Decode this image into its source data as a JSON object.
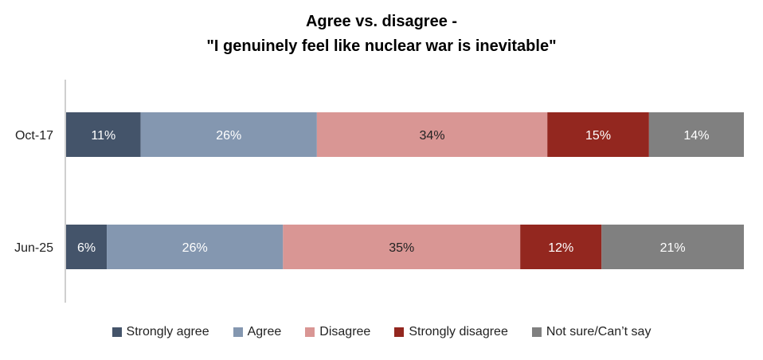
{
  "chart_data": {
    "type": "bar",
    "orientation": "horizontal",
    "stacked": true,
    "title_line1": "Agree vs. disagree -",
    "title_line2": "\"I genuinely feel like nuclear war is inevitable\"",
    "categories": [
      "Oct-17",
      "Jun-25"
    ],
    "series": [
      {
        "name": "Strongly agree",
        "color": "#44546a",
        "values": [
          11,
          6
        ]
      },
      {
        "name": "Agree",
        "color": "#8497b0",
        "values": [
          26,
          26
        ]
      },
      {
        "name": "Disagree",
        "color": "#d99694",
        "values": [
          34,
          35
        ]
      },
      {
        "name": "Strongly disagree",
        "color": "#93271f",
        "values": [
          15,
          12
        ]
      },
      {
        "name": "Not sure/Can’t say",
        "color": "#808080",
        "values": [
          14,
          21
        ]
      }
    ],
    "value_suffix": "%",
    "legend_position": "bottom",
    "grid": false
  }
}
